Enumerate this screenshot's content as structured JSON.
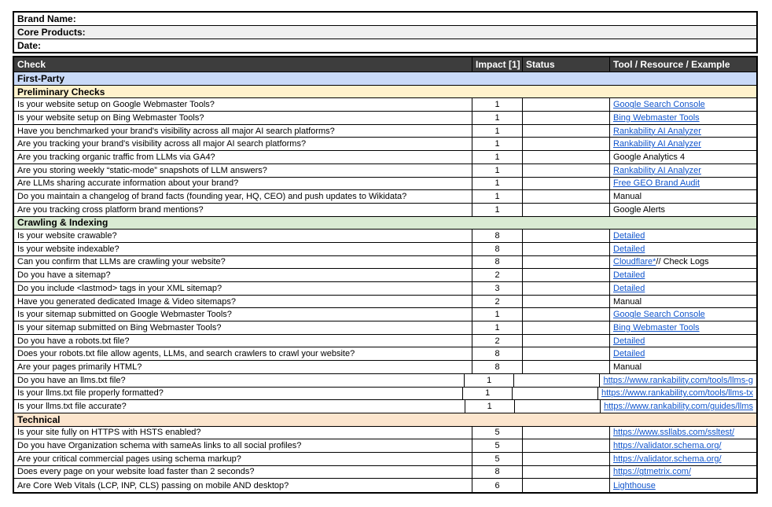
{
  "meta_rows": [
    {
      "label": "Brand Name:"
    },
    {
      "label": "Core Products:"
    },
    {
      "label": "Date:"
    }
  ],
  "columns": {
    "check": "Check",
    "impact": "Impact [1]",
    "status": "Status",
    "tool": "Tool / Resource / Example"
  },
  "colors": {
    "header_bg": "#3d3d3d",
    "header_text": "#ffffff",
    "first_party_bg": "#c9daf8",
    "preliminary_bg": "#fff2cc",
    "crawling_bg": "#d9ead3",
    "technical_bg": "#fce5cd",
    "meta_alt_bg": "#efefef",
    "link": "#1155cc",
    "border": "#000000"
  },
  "sections": [
    {
      "title": "First-Party",
      "kind": "major",
      "bg_key": "first_party_bg",
      "rows": []
    },
    {
      "title": "Preliminary Checks",
      "kind": "sub",
      "bg_key": "preliminary_bg",
      "rows": [
        {
          "check": "Is your website setup on Google Webmaster Tools?",
          "impact": "1",
          "status": "",
          "tool": [
            {
              "text": "Google Search Console",
              "link": true
            }
          ]
        },
        {
          "check": "Is your website setup on Bing Webmaster Tools?",
          "impact": "1",
          "status": "",
          "tool": [
            {
              "text": "Bing Webmaster Tools",
              "link": true
            }
          ]
        },
        {
          "check": "Have you benchmarked your brand's visibility across all major AI search platforms?",
          "impact": "1",
          "status": "",
          "tool": [
            {
              "text": "Rankability AI Analyzer",
              "link": true
            }
          ]
        },
        {
          "check": "Are you tracking your brand's visibility across all major AI search platforms?",
          "impact": "1",
          "status": "",
          "tool": [
            {
              "text": "Rankability AI Analyzer",
              "link": true
            }
          ]
        },
        {
          "check": "Are you tracking organic traffic from LLMs via GA4?",
          "impact": "1",
          "status": "",
          "tool": [
            {
              "text": "Google Analytics 4",
              "link": false
            }
          ]
        },
        {
          "check": "Are you storing weekly “static-mode” snapshots of LLM answers?",
          "impact": "1",
          "status": "",
          "tool": [
            {
              "text": "Rankability AI Analyzer",
              "link": true
            }
          ]
        },
        {
          "check": "Are LLMs sharing accurate information about your brand?",
          "impact": "1",
          "status": "",
          "tool": [
            {
              "text": "Free GEO Brand Audit",
              "link": true
            }
          ]
        },
        {
          "check": "Do you maintain a changelog of brand facts (founding year, HQ, CEO) and push updates to Wikidata?",
          "impact": "1",
          "status": "",
          "tool": [
            {
              "text": "Manual",
              "link": false
            }
          ]
        },
        {
          "check": "Are you tracking cross platform brand mentions?",
          "impact": "1",
          "status": "",
          "tool": [
            {
              "text": "Google Alerts",
              "link": false
            }
          ]
        }
      ]
    },
    {
      "title": "Crawling & Indexing",
      "kind": "sub",
      "bg_key": "crawling_bg",
      "rows": [
        {
          "check": "Is your website crawable?",
          "impact": "8",
          "status": "",
          "tool": [
            {
              "text": "Detailed",
              "link": true
            }
          ]
        },
        {
          "check": "Is your website indexable?",
          "impact": "8",
          "status": "",
          "tool": [
            {
              "text": "Detailed",
              "link": true
            }
          ]
        },
        {
          "check": "Can you confirm that LLMs are crawling your website?",
          "impact": "8",
          "status": "",
          "tool": [
            {
              "text": "Cloudflare*",
              "link": true
            },
            {
              "text": " // Check Logs",
              "link": false
            }
          ]
        },
        {
          "check": "Do you have a sitemap?",
          "impact": "2",
          "status": "",
          "tool": [
            {
              "text": "Detailed",
              "link": true
            }
          ]
        },
        {
          "check": "Do you include <lastmod> tags in your XML sitemap?",
          "impact": "3",
          "status": "",
          "tool": [
            {
              "text": "Detailed",
              "link": true
            }
          ]
        },
        {
          "check": "Have you generated dedicated Image & Video sitemaps?",
          "impact": "2",
          "status": "",
          "tool": [
            {
              "text": "Manual",
              "link": false
            }
          ]
        },
        {
          "check": "Is your sitemap submitted on Google Webmaster Tools?",
          "impact": "1",
          "status": "",
          "tool": [
            {
              "text": "Google Search Console",
              "link": true
            }
          ]
        },
        {
          "check": "Is your sitemap submitted on Bing Webmaster Tools?",
          "impact": "1",
          "status": "",
          "tool": [
            {
              "text": "Bing Webmaster Tools",
              "link": true
            }
          ]
        },
        {
          "check": "Do you have a robots.txt file?",
          "impact": "2",
          "status": "",
          "tool": [
            {
              "text": "Detailed",
              "link": true
            }
          ]
        },
        {
          "check": "Does your robots.txt file allow agents, LLMs, and search crawlers to crawl your website?",
          "impact": "8",
          "status": "",
          "tool": [
            {
              "text": "Detailed",
              "link": true
            }
          ]
        },
        {
          "check": "Are your pages primarily HTML?",
          "impact": "8",
          "status": "",
          "tool": [
            {
              "text": "Manual",
              "link": false
            }
          ]
        },
        {
          "check": "Do you have an llms.txt file?",
          "impact": "1",
          "status": "",
          "overflow": true,
          "tool": [
            {
              "text": "https://www.rankability.com/tools/llms-g",
              "link": true
            }
          ]
        },
        {
          "check": "Is your llms.txt file properly formatted?",
          "impact": "1",
          "status": "",
          "overflow": true,
          "tool": [
            {
              "text": "https://www.rankability.com/tools/llms-tx",
              "link": true
            }
          ]
        },
        {
          "check": "Is your llms.txt file accurate?",
          "impact": "1",
          "status": "",
          "overflow": true,
          "tool": [
            {
              "text": "https://www.rankability.com/guides/llms",
              "link": true
            }
          ]
        }
      ]
    },
    {
      "title": "Technical",
      "kind": "sub",
      "bg_key": "technical_bg",
      "rows": [
        {
          "check": "Is your site fully on HTTPS with HSTS enabled?",
          "impact": "5",
          "status": "",
          "tool": [
            {
              "text": "https://www.ssllabs.com/ssltest/",
              "link": true
            }
          ]
        },
        {
          "check": "Do you have Organization schema with sameAs links to all social profiles?",
          "impact": "5",
          "status": "",
          "tool": [
            {
              "text": "https://validator.schema.org/",
              "link": true
            }
          ]
        },
        {
          "check": "Are your critical commercial pages using schema markup?",
          "impact": "5",
          "status": "",
          "tool": [
            {
              "text": "https://validator.schema.org/",
              "link": true
            }
          ]
        },
        {
          "check": "Does every page on your website load faster than 2 seconds?",
          "impact": "8",
          "status": "",
          "tool": [
            {
              "text": "https://gtmetrix.com/",
              "link": true
            }
          ]
        },
        {
          "check": "Are Core Web Vitals (LCP, INP, CLS) passing on mobile AND desktop?",
          "impact": "6",
          "status": "",
          "tool": [
            {
              "text": "Lighthouse",
              "link": true
            }
          ]
        }
      ]
    }
  ]
}
